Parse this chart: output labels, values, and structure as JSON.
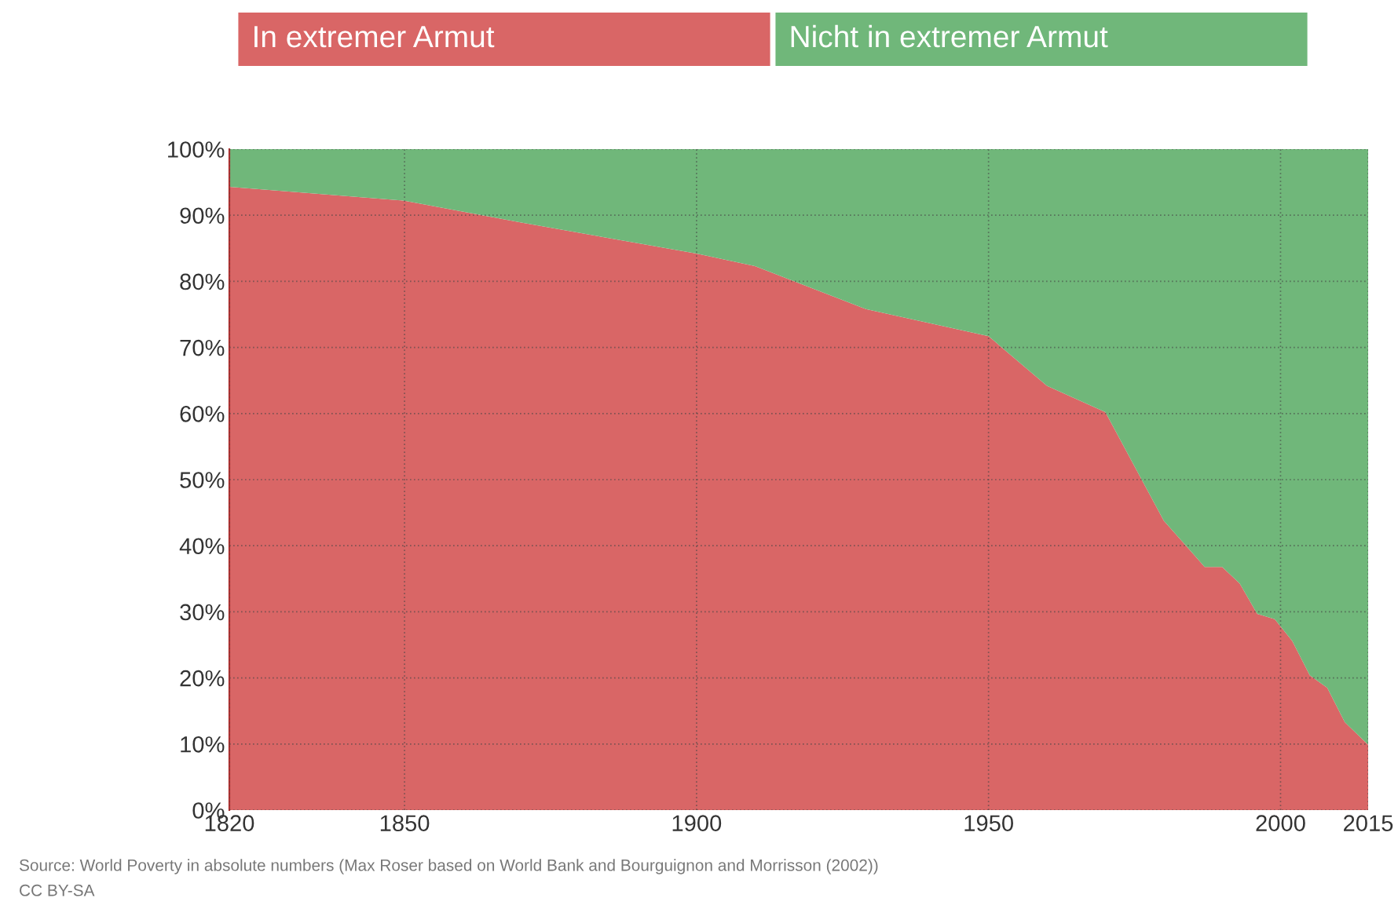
{
  "chart_data": {
    "type": "area",
    "stacked": true,
    "x": [
      1820,
      1850,
      1870,
      1900,
      1910,
      1929,
      1950,
      1960,
      1970,
      1980,
      1987,
      1990,
      1993,
      1996,
      1999,
      2002,
      2005,
      2008,
      2011,
      2015
    ],
    "series": [
      {
        "name": "In extremer Armut",
        "color": "#d96666",
        "values": [
          94.3,
          92.2,
          88.9,
          84.2,
          82.3,
          75.8,
          71.7,
          64.2,
          60.2,
          43.8,
          36.8,
          36.8,
          34.3,
          29.7,
          28.9,
          25.6,
          20.4,
          18.5,
          13.3,
          9.9
        ]
      },
      {
        "name": "Nicht in extremer Armut",
        "color": "#70b77a",
        "values": [
          5.7,
          7.8,
          11.1,
          15.8,
          17.7,
          24.2,
          28.3,
          35.8,
          39.8,
          56.2,
          63.2,
          63.2,
          65.7,
          70.3,
          71.1,
          74.4,
          79.6,
          81.5,
          86.7,
          90.1
        ]
      }
    ],
    "xlim": [
      1820,
      2015
    ],
    "xticks": [
      1820,
      1850,
      1900,
      1950,
      2000,
      2015
    ],
    "ylim": [
      0,
      100
    ],
    "yticks": [
      {
        "value": 0,
        "label": "0%"
      },
      {
        "value": 10,
        "label": "10%"
      },
      {
        "value": 20,
        "label": "20%"
      },
      {
        "value": 30,
        "label": "30%"
      },
      {
        "value": 40,
        "label": "40%"
      },
      {
        "value": 50,
        "label": "50%"
      },
      {
        "value": 60,
        "label": "60%"
      },
      {
        "value": 70,
        "label": "70%"
      },
      {
        "value": 80,
        "label": "80%"
      },
      {
        "value": 90,
        "label": "90%"
      },
      {
        "value": 100,
        "label": "100%"
      }
    ],
    "grid": true,
    "legend": "top",
    "annotations": [
      "Source: World Poverty in absolute numbers (Max Roser based on World Bank and Bourguignon and Morrisson (2002))",
      "CC BY-SA"
    ]
  }
}
